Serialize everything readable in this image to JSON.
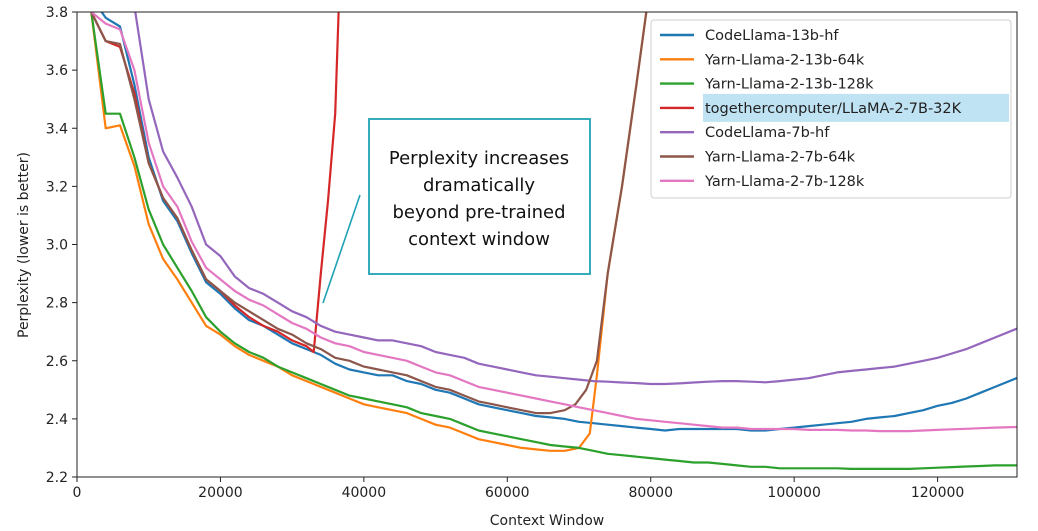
{
  "chart_data": {
    "type": "line",
    "title": "",
    "xlabel": "Context Window",
    "ylabel": "Perplexity (lower is better)",
    "xlim": [
      0,
      131072
    ],
    "ylim": [
      2.2,
      3.8
    ],
    "xticks": [
      0,
      20000,
      40000,
      60000,
      80000,
      100000,
      120000
    ],
    "xtick_labels": [
      "0",
      "20000",
      "40000",
      "60000",
      "80000",
      "100000",
      "120000"
    ],
    "yticks": [
      2.2,
      2.4,
      2.6,
      2.8,
      3.0,
      3.2,
      3.4,
      3.6,
      3.8
    ],
    "ytick_labels": [
      "2.2",
      "2.4",
      "2.6",
      "2.8",
      "3.0",
      "3.2",
      "3.4",
      "3.6",
      "3.8"
    ],
    "grid": false,
    "legend_position": "top-right",
    "highlighted_legend_entry": "togethercomputer/LLaMA-2-7B-32K",
    "highlight_color": "#bfe3f3",
    "annotation": {
      "lines": [
        "Perplexity increases",
        "dramatically",
        "beyond pre-trained",
        "context window"
      ],
      "border_color": "#1fa2b5",
      "pointer_color": "#1fa2b5",
      "pointer_target": [
        33000,
        2.8
      ]
    },
    "series": [
      {
        "name": "CodeLlama-13b-hf",
        "color": "#1f77b4",
        "x": [
          2000,
          4000,
          6000,
          8000,
          10000,
          12000,
          14000,
          16000,
          18000,
          20000,
          22000,
          24000,
          26000,
          28000,
          30000,
          32000,
          34000,
          36000,
          38000,
          40000,
          42000,
          44000,
          46000,
          48000,
          50000,
          52000,
          54000,
          56000,
          58000,
          60000,
          62000,
          64000,
          66000,
          68000,
          70000,
          72000,
          74000,
          76000,
          78000,
          80000,
          82000,
          84000,
          86000,
          88000,
          90000,
          92000,
          94000,
          96000,
          98000,
          100000,
          102000,
          104000,
          106000,
          108000,
          110000,
          112000,
          114000,
          116000,
          118000,
          120000,
          122000,
          124000,
          126000,
          128000,
          131000
        ],
        "y": [
          3.85,
          3.78,
          3.75,
          3.55,
          3.3,
          3.15,
          3.08,
          2.97,
          2.87,
          2.83,
          2.78,
          2.74,
          2.72,
          2.69,
          2.66,
          2.64,
          2.62,
          2.59,
          2.57,
          2.56,
          2.55,
          2.55,
          2.53,
          2.52,
          2.5,
          2.49,
          2.47,
          2.45,
          2.44,
          2.43,
          2.42,
          2.41,
          2.405,
          2.4,
          2.39,
          2.385,
          2.38,
          2.375,
          2.37,
          2.365,
          2.36,
          2.365,
          2.365,
          2.365,
          2.365,
          2.365,
          2.36,
          2.36,
          2.365,
          2.37,
          2.375,
          2.38,
          2.385,
          2.39,
          2.4,
          2.405,
          2.41,
          2.42,
          2.43,
          2.445,
          2.455,
          2.47,
          2.49,
          2.51,
          2.54
        ]
      },
      {
        "name": "Yarn-Llama-2-13b-64k",
        "color": "#ff7f0e",
        "x": [
          2000,
          4000,
          6000,
          8000,
          10000,
          12000,
          14000,
          16000,
          18000,
          20000,
          22000,
          24000,
          26000,
          28000,
          30000,
          32000,
          34000,
          36000,
          38000,
          40000,
          42000,
          44000,
          46000,
          48000,
          50000,
          52000,
          54000,
          56000,
          58000,
          60000,
          62000,
          64000,
          66000,
          68000,
          70000,
          71500,
          72500,
          74000,
          76000,
          78000,
          79500
        ],
        "y": [
          3.8,
          3.4,
          3.41,
          3.27,
          3.07,
          2.95,
          2.88,
          2.8,
          2.72,
          2.69,
          2.65,
          2.62,
          2.6,
          2.58,
          2.55,
          2.53,
          2.51,
          2.49,
          2.47,
          2.45,
          2.44,
          2.43,
          2.42,
          2.4,
          2.38,
          2.37,
          2.35,
          2.33,
          2.32,
          2.31,
          2.3,
          2.295,
          2.29,
          2.29,
          2.3,
          2.35,
          2.55,
          2.9,
          3.2,
          3.55,
          3.82
        ]
      },
      {
        "name": "Yarn-Llama-2-13b-128k",
        "color": "#2ca02c",
        "x": [
          2000,
          4000,
          6000,
          8000,
          10000,
          12000,
          14000,
          16000,
          18000,
          20000,
          22000,
          24000,
          26000,
          28000,
          30000,
          32000,
          34000,
          36000,
          38000,
          40000,
          42000,
          44000,
          46000,
          48000,
          50000,
          52000,
          54000,
          56000,
          58000,
          60000,
          62000,
          64000,
          66000,
          68000,
          70000,
          72000,
          74000,
          76000,
          78000,
          80000,
          82000,
          84000,
          86000,
          88000,
          90000,
          92000,
          94000,
          96000,
          98000,
          100000,
          102000,
          104000,
          106000,
          108000,
          110000,
          112000,
          114000,
          116000,
          118000,
          120000,
          122000,
          124000,
          126000,
          128000,
          131000
        ],
        "y": [
          3.8,
          3.45,
          3.45,
          3.3,
          3.12,
          3.0,
          2.92,
          2.84,
          2.75,
          2.7,
          2.66,
          2.63,
          2.61,
          2.58,
          2.56,
          2.54,
          2.52,
          2.5,
          2.48,
          2.47,
          2.46,
          2.45,
          2.44,
          2.42,
          2.41,
          2.4,
          2.38,
          2.36,
          2.35,
          2.34,
          2.33,
          2.32,
          2.31,
          2.305,
          2.3,
          2.29,
          2.28,
          2.275,
          2.27,
          2.265,
          2.26,
          2.255,
          2.25,
          2.25,
          2.245,
          2.24,
          2.235,
          2.235,
          2.23,
          2.23,
          2.23,
          2.23,
          2.23,
          2.228,
          2.228,
          2.228,
          2.228,
          2.228,
          2.23,
          2.232,
          2.234,
          2.236,
          2.238,
          2.24,
          2.24
        ]
      },
      {
        "name": "togethercomputer/LLaMA-2-7B-32K",
        "color": "#d62728",
        "x": [
          2000,
          4000,
          6000,
          8000,
          10000,
          12000,
          14000,
          16000,
          18000,
          20000,
          22000,
          24000,
          26000,
          28000,
          30000,
          32000,
          33000,
          34000,
          35000,
          36000,
          36500
        ],
        "y": [
          3.8,
          3.7,
          3.68,
          3.52,
          3.28,
          3.16,
          3.09,
          2.98,
          2.88,
          2.84,
          2.79,
          2.75,
          2.72,
          2.7,
          2.67,
          2.65,
          2.63,
          2.9,
          3.15,
          3.45,
          3.82
        ]
      },
      {
        "name": "CodeLlama-7b-hf",
        "color": "#9467bd",
        "x": [
          2000,
          4000,
          6000,
          8000,
          10000,
          12000,
          14000,
          16000,
          18000,
          20000,
          22000,
          24000,
          26000,
          28000,
          30000,
          32000,
          34000,
          36000,
          38000,
          40000,
          42000,
          44000,
          46000,
          48000,
          50000,
          52000,
          54000,
          56000,
          58000,
          60000,
          62000,
          64000,
          66000,
          68000,
          70000,
          72000,
          74000,
          76000,
          78000,
          80000,
          82000,
          84000,
          86000,
          88000,
          90000,
          92000,
          94000,
          96000,
          98000,
          100000,
          102000,
          104000,
          106000,
          108000,
          110000,
          112000,
          114000,
          116000,
          118000,
          120000,
          122000,
          124000,
          126000,
          128000,
          131000
        ],
        "y": [
          3.85,
          3.84,
          3.84,
          3.82,
          3.5,
          3.32,
          3.23,
          3.13,
          3.0,
          2.96,
          2.89,
          2.85,
          2.83,
          2.8,
          2.77,
          2.75,
          2.72,
          2.7,
          2.69,
          2.68,
          2.67,
          2.67,
          2.66,
          2.65,
          2.63,
          2.62,
          2.61,
          2.59,
          2.58,
          2.57,
          2.56,
          2.55,
          2.545,
          2.54,
          2.535,
          2.53,
          2.528,
          2.525,
          2.523,
          2.52,
          2.52,
          2.522,
          2.525,
          2.528,
          2.53,
          2.53,
          2.528,
          2.526,
          2.53,
          2.535,
          2.54,
          2.55,
          2.56,
          2.565,
          2.57,
          2.575,
          2.58,
          2.59,
          2.6,
          2.61,
          2.625,
          2.64,
          2.66,
          2.68,
          2.71
        ]
      },
      {
        "name": "Yarn-Llama-2-7b-64k",
        "color": "#8c564b",
        "x": [
          2000,
          4000,
          6000,
          8000,
          10000,
          12000,
          14000,
          16000,
          18000,
          20000,
          22000,
          24000,
          26000,
          28000,
          30000,
          32000,
          34000,
          36000,
          38000,
          40000,
          42000,
          44000,
          46000,
          48000,
          50000,
          52000,
          54000,
          56000,
          58000,
          60000,
          62000,
          64000,
          66000,
          68000,
          69500,
          71000,
          72500,
          74000,
          76000,
          78000,
          79500
        ],
        "y": [
          3.8,
          3.7,
          3.69,
          3.5,
          3.28,
          3.16,
          3.09,
          2.98,
          2.88,
          2.84,
          2.8,
          2.77,
          2.74,
          2.71,
          2.69,
          2.66,
          2.64,
          2.61,
          2.6,
          2.58,
          2.57,
          2.56,
          2.55,
          2.53,
          2.51,
          2.5,
          2.48,
          2.46,
          2.45,
          2.44,
          2.43,
          2.42,
          2.42,
          2.43,
          2.45,
          2.5,
          2.6,
          2.9,
          3.2,
          3.55,
          3.82
        ]
      },
      {
        "name": "Yarn-Llama-2-7b-128k",
        "color": "#e377c2",
        "x": [
          2000,
          4000,
          6000,
          8000,
          10000,
          12000,
          14000,
          16000,
          18000,
          20000,
          22000,
          24000,
          26000,
          28000,
          30000,
          32000,
          34000,
          36000,
          38000,
          40000,
          42000,
          44000,
          46000,
          48000,
          50000,
          52000,
          54000,
          56000,
          58000,
          60000,
          62000,
          64000,
          66000,
          68000,
          70000,
          72000,
          74000,
          76000,
          78000,
          80000,
          82000,
          84000,
          86000,
          88000,
          90000,
          92000,
          94000,
          96000,
          98000,
          100000,
          102000,
          104000,
          106000,
          108000,
          110000,
          112000,
          114000,
          116000,
          118000,
          120000,
          122000,
          124000,
          126000,
          128000,
          131000
        ],
        "y": [
          3.8,
          3.76,
          3.74,
          3.6,
          3.35,
          3.2,
          3.13,
          3.01,
          2.92,
          2.88,
          2.84,
          2.81,
          2.79,
          2.76,
          2.73,
          2.71,
          2.68,
          2.66,
          2.65,
          2.63,
          2.62,
          2.61,
          2.6,
          2.58,
          2.56,
          2.55,
          2.53,
          2.51,
          2.5,
          2.49,
          2.48,
          2.47,
          2.46,
          2.45,
          2.44,
          2.43,
          2.42,
          2.41,
          2.4,
          2.395,
          2.39,
          2.385,
          2.38,
          2.375,
          2.37,
          2.37,
          2.365,
          2.365,
          2.365,
          2.365,
          2.362,
          2.362,
          2.362,
          2.36,
          2.36,
          2.358,
          2.358,
          2.358,
          2.36,
          2.362,
          2.364,
          2.366,
          2.368,
          2.37,
          2.372
        ]
      }
    ]
  }
}
